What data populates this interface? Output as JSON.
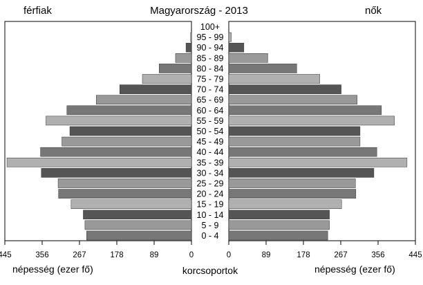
{
  "chart_data": {
    "type": "bar",
    "orientation": "horizontal",
    "layout": "population-pyramid",
    "title": "Magyarország  - 2013",
    "left_label": "férfiak",
    "right_label": "nők",
    "center_xlabel": "korcsoportok",
    "left_xlabel": "népesség (ezer fő)",
    "right_xlabel": "népesség (ezer fő)",
    "categories": [
      "0 - 4",
      "5 - 9",
      "10 - 14",
      "15 - 19",
      "20 - 24",
      "25 - 29",
      "30 - 34",
      "35 - 39",
      "40 - 44",
      "45 - 49",
      "50 - 54",
      "55 - 59",
      "60 - 64",
      "65 - 69",
      "70 - 74",
      "75 - 79",
      "80 - 84",
      "85 - 89",
      "90 - 94",
      "95 - 99",
      "100+"
    ],
    "series": [
      {
        "values": [
          250,
          254,
          258,
          287,
          317,
          318,
          358,
          440,
          360,
          309,
          290,
          347,
          297,
          227,
          171,
          117,
          77,
          38,
          13,
          2,
          0
        ]
      },
      {
        "values": [
          236,
          240,
          240,
          269,
          303,
          302,
          346,
          425,
          353,
          313,
          313,
          395,
          364,
          306,
          268,
          217,
          162,
          93,
          36,
          6,
          0
        ]
      }
    ],
    "xlim": [
      0,
      445
    ],
    "xticks": [
      0,
      89,
      178,
      267,
      356,
      445
    ],
    "bar_colors": [
      "#777777",
      "#999999",
      "#555555",
      "#b0b0b0"
    ]
  }
}
